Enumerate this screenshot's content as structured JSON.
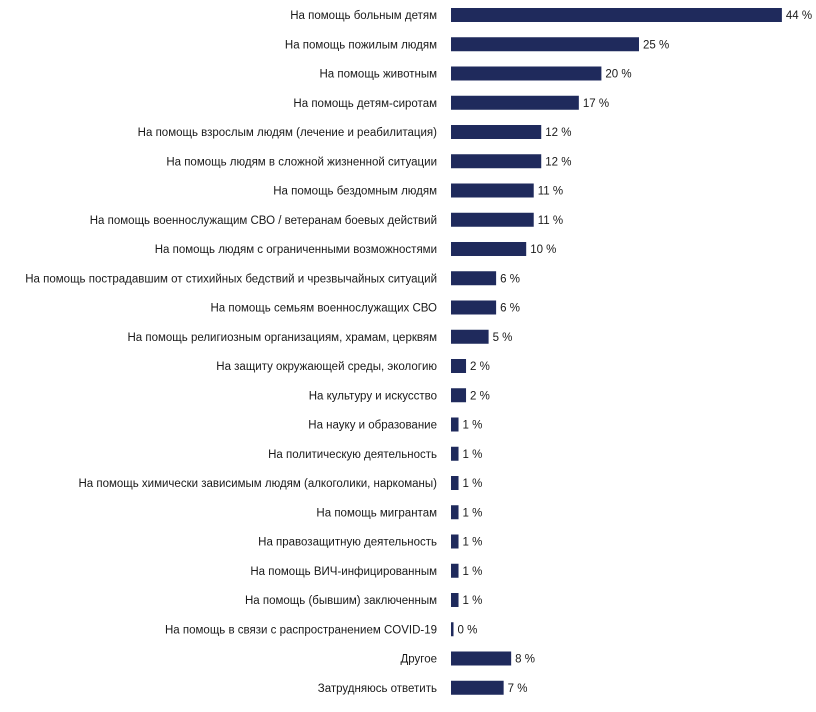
{
  "colors": {
    "bar": "#1f2a5c",
    "text": "#1a1a1a",
    "background": "#ffffff"
  },
  "chart_data": {
    "type": "bar",
    "orientation": "horizontal",
    "value_suffix": " %",
    "grid": false,
    "legend": "none",
    "xlim": [
      0,
      44
    ],
    "categories": [
      "На помощь больным детям",
      "На помощь пожилым людям",
      "На помощь животным",
      "На помощь детям-сиротам",
      "На помощь взрослым людям (лечение и реабилитация)",
      "На помощь людям в сложной жизненной ситуации",
      "На помощь бездомным людям",
      "На помощь военнослужащим СВО / ветеранам боевых действий",
      "На помощь людям с ограниченными возможностями",
      "На помощь пострадавшим от стихийных бедствий и чрезвычайных ситуаций",
      "На помощь семьям военнослужащих СВО",
      "На помощь религиозным организациям, храмам, церквям",
      "На защиту окружающей среды, экологию",
      "На культуру и искусство",
      "На науку и образование",
      "На политическую деятельность",
      "На помощь химически зависимым людям (алкоголики, наркоманы)",
      "На помощь мигрантам",
      "На правозащитную деятельность",
      "На помощь ВИЧ-инфицированным",
      "На помощь (бывшим) заключенным",
      "На помощь в связи с распространением COVID-19",
      "Другое",
      "Затрудняюсь ответить"
    ],
    "values": [
      44,
      25,
      20,
      17,
      12,
      12,
      11,
      11,
      10,
      6,
      6,
      5,
      2,
      2,
      1,
      1,
      1,
      1,
      1,
      1,
      1,
      0,
      8,
      7
    ],
    "value_labels": [
      "44 %",
      "25 %",
      "20 %",
      "17 %",
      "12 %",
      "12 %",
      "11 %",
      "11 %",
      "10 %",
      "6 %",
      "6 %",
      "5 %",
      "2 %",
      "2 %",
      "1 %",
      "1 %",
      "1 %",
      "1 %",
      "1 %",
      "1 %",
      "1 %",
      "0 %",
      "8 %",
      "7 %"
    ]
  }
}
